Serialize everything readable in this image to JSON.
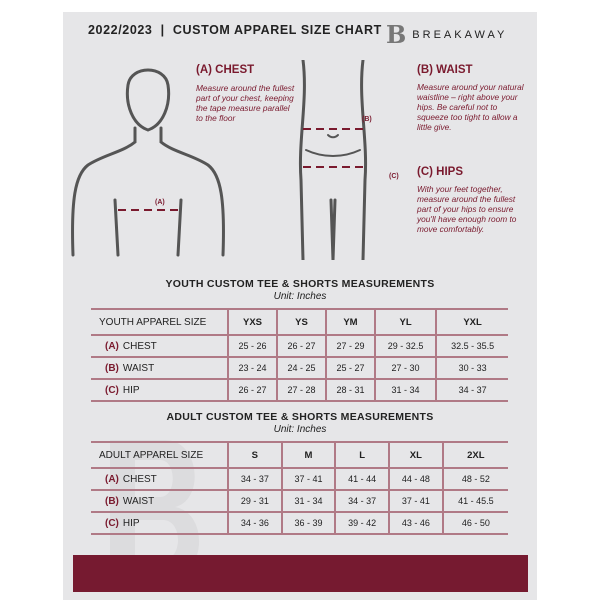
{
  "header": {
    "title": "2022/2023  |  CUSTOM APPAREL SIZE CHART",
    "brand": "BREAKAWAY",
    "logo_letter": "B"
  },
  "guide": {
    "chest": {
      "title": "(A) CHEST",
      "text": "Measure around the fullest part of your chest, keeping the tape measure parallel to the floor",
      "marker": "(A)"
    },
    "waist": {
      "title": "(B) WAIST",
      "text": "Measure around your natural waistline – right above your hips. Be careful not to squeeze too tight to allow a little give.",
      "marker": "(B)"
    },
    "hips": {
      "title": "(C) HIPS",
      "text": "With your feet together, measure around the fullest part of your hips to ensure you'll have enough room to move comfortably.",
      "marker": "(C)"
    }
  },
  "youth": {
    "title": "YOUTH CUSTOM TEE & SHORTS MEASUREMENTS",
    "unit": "Unit: Inches",
    "header_label": "YOUTH APPAREL SIZE",
    "sizes": [
      "YXS",
      "YS",
      "YM",
      "YL",
      "YXL"
    ],
    "rows": [
      {
        "letter": "(A)",
        "name": "CHEST",
        "values": [
          "25 - 26",
          "26 - 27",
          "27 - 29",
          "29 - 32.5",
          "32.5 - 35.5"
        ]
      },
      {
        "letter": "(B)",
        "name": "WAIST",
        "values": [
          "23 - 24",
          "24 - 25",
          "25 - 27",
          "27 - 30",
          "30 - 33"
        ]
      },
      {
        "letter": "(C)",
        "name": "HIP",
        "values": [
          "26 - 27",
          "27 - 28",
          "28 - 31",
          "31 - 34",
          "34 - 37"
        ]
      }
    ]
  },
  "adult": {
    "title": "ADULT CUSTOM TEE & SHORTS MEASUREMENTS",
    "unit": "Unit: Inches",
    "header_label": "ADULT APPAREL SIZE",
    "sizes": [
      "S",
      "M",
      "L",
      "XL",
      "2XL"
    ],
    "rows": [
      {
        "letter": "(A)",
        "name": "CHEST",
        "values": [
          "34 - 37",
          "37 - 41",
          "41 - 44",
          "44 - 48",
          "48 - 52"
        ]
      },
      {
        "letter": "(B)",
        "name": "WAIST",
        "values": [
          "29 - 31",
          "31 - 34",
          "34 - 37",
          "37 - 41",
          "41 - 45.5"
        ]
      },
      {
        "letter": "(C)",
        "name": "HIP",
        "values": [
          "34 - 36",
          "36 - 39",
          "39 - 42",
          "43 - 46",
          "46 - 50"
        ]
      }
    ]
  },
  "colors": {
    "accent": "#761a30",
    "panel": "#e6e6e8"
  }
}
